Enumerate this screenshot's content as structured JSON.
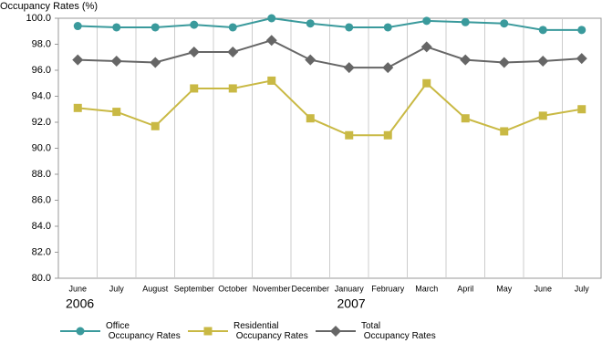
{
  "chart_data": {
    "type": "line",
    "y_axis_title": "Occupancy Rates (%)",
    "categories": [
      "June",
      "July",
      "August",
      "September",
      "October",
      "November",
      "December",
      "January",
      "February",
      "March",
      "April",
      "May",
      "June",
      "July"
    ],
    "category_groups": [
      "2006",
      null,
      null,
      null,
      null,
      null,
      null,
      "2007",
      null,
      null,
      null,
      null,
      null,
      null
    ],
    "series": [
      {
        "name": "Office Occupancy Rates",
        "color": "#3a9a9c",
        "marker": "circle",
        "values": [
          99.4,
          99.3,
          99.3,
          99.5,
          99.3,
          100.0,
          99.6,
          99.3,
          99.3,
          99.8,
          99.7,
          99.6,
          99.1,
          99.1
        ]
      },
      {
        "name": "Residential Occupancy Rates",
        "color": "#c9b944",
        "marker": "square",
        "values": [
          93.1,
          92.8,
          91.7,
          94.6,
          94.6,
          95.2,
          92.3,
          91.0,
          91.0,
          95.0,
          92.3,
          91.3,
          92.5,
          93.0
        ]
      },
      {
        "name": "Total Occupancy Rates",
        "color": "#666666",
        "marker": "diamond",
        "values": [
          96.8,
          96.7,
          96.6,
          97.4,
          97.4,
          98.3,
          96.8,
          96.2,
          96.2,
          97.8,
          96.8,
          96.6,
          96.7,
          96.9
        ]
      }
    ],
    "ylim": [
      80,
      100
    ],
    "yticks": [
      {
        "value": 80,
        "label": "80.0"
      },
      {
        "value": 82,
        "label": "82.0"
      },
      {
        "value": 84,
        "label": "84.0"
      },
      {
        "value": 86,
        "label": "86.0"
      },
      {
        "value": 88,
        "label": "88.0"
      },
      {
        "value": 90,
        "label": "90.0"
      },
      {
        "value": 92,
        "label": "92.0"
      },
      {
        "value": 94,
        "label": "94.0"
      },
      {
        "value": 96,
        "label": "96.0"
      },
      {
        "value": 98,
        "label": "98.0"
      },
      {
        "value": 100,
        "label": "100.0"
      }
    ],
    "grid": "vertical"
  }
}
